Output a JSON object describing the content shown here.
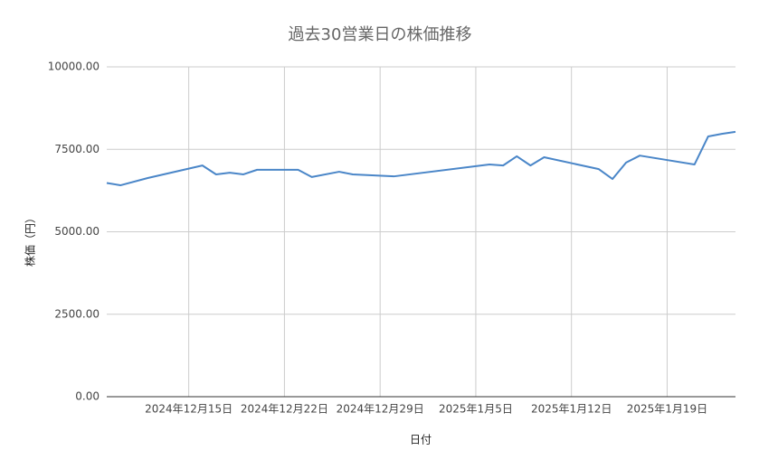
{
  "chart_data": {
    "type": "line",
    "title": "過去30営業日の株価推移",
    "x_label": "日付",
    "y_label": "株価（円）",
    "x": [
      "2024-12-09",
      "2024-12-10",
      "2024-12-12",
      "2024-12-16",
      "2024-12-17",
      "2024-12-18",
      "2024-12-19",
      "2024-12-20",
      "2024-12-23",
      "2024-12-24",
      "2024-12-26",
      "2024-12-27",
      "2024-12-30",
      "2025-01-06",
      "2025-01-07",
      "2025-01-08",
      "2025-01-09",
      "2025-01-10",
      "2025-01-14",
      "2025-01-15",
      "2025-01-16",
      "2025-01-17",
      "2025-01-21",
      "2025-01-22",
      "2025-01-23",
      "2025-01-24"
    ],
    "values": [
      6480,
      6410,
      6630,
      7010,
      6740,
      6790,
      6740,
      6880,
      6880,
      6660,
      6820,
      6740,
      6680,
      7040,
      7010,
      7290,
      7010,
      7260,
      6900,
      6600,
      7100,
      7310,
      7040,
      7890,
      7970,
      8030
    ],
    "color": "#4a86c8",
    "xlim": [
      "2024-12-09",
      "2025-01-24"
    ],
    "xticks": [
      {
        "value": "2024-12-15",
        "label": "2024年12月15日"
      },
      {
        "value": "2024-12-22",
        "label": "2024年12月22日"
      },
      {
        "value": "2024-12-29",
        "label": "2024年12月29日"
      },
      {
        "value": "2025-01-05",
        "label": "2025年1月5日"
      },
      {
        "value": "2025-01-12",
        "label": "2025年1月12日"
      },
      {
        "value": "2025-01-19",
        "label": "2025年1月19日"
      }
    ],
    "ylim": [
      0,
      10000
    ],
    "yticks": [
      {
        "value": 0,
        "label": "0.00"
      },
      {
        "value": 2500,
        "label": "2500.00"
      },
      {
        "value": 5000,
        "label": "5000.00"
      },
      {
        "value": 7500,
        "label": "7500.00"
      },
      {
        "value": 10000,
        "label": "10000.00"
      }
    ],
    "grid": true
  }
}
